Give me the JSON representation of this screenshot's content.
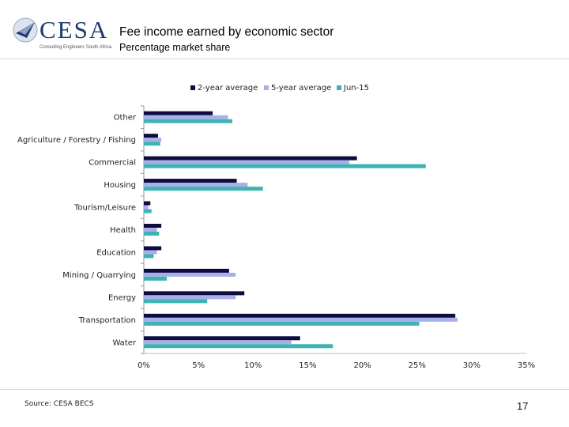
{
  "header": {
    "logo_text": "CESA",
    "logo_tagline": "Consulting Engineers South Africa",
    "title": "Fee income earned by economic sector",
    "subtitle": "Percentage market share"
  },
  "footer": {
    "source": "Source: CESA BECS",
    "page_number": "17"
  },
  "colors": {
    "series_1": "#0c0c3e",
    "series_2": "#a8b0ea",
    "series_3": "#3fb3b3"
  },
  "chart_data": {
    "type": "bar",
    "orientation": "horizontal",
    "title": "Fee income earned by economic sector",
    "subtitle": "Percentage market share",
    "categories": [
      "Other",
      "Agriculture / Forestry / Fishing",
      "Commercial",
      "Housing",
      "Tourism/Leisure",
      "Health",
      "Education",
      "Mining / Quarrying",
      "Energy",
      "Transportation",
      "Water"
    ],
    "series": [
      {
        "name": "2-year average",
        "values": [
          6.3,
          1.3,
          19.5,
          8.5,
          0.6,
          1.6,
          1.6,
          7.8,
          9.2,
          28.5,
          14.3
        ]
      },
      {
        "name": "5-year average",
        "values": [
          7.7,
          1.6,
          18.8,
          9.5,
          0.4,
          1.2,
          1.2,
          8.4,
          8.4,
          28.7,
          13.5
        ]
      },
      {
        "name": "Jun-15",
        "values": [
          8.1,
          1.5,
          25.8,
          10.9,
          0.7,
          1.4,
          0.9,
          2.1,
          5.8,
          25.2,
          17.3
        ]
      }
    ],
    "xlim": [
      0,
      35
    ],
    "x_ticks": [
      "0%",
      "5%",
      "10%",
      "15%",
      "20%",
      "25%",
      "30%",
      "35%"
    ],
    "x_tick_values": [
      0,
      5,
      10,
      15,
      20,
      25,
      30,
      35
    ],
    "legend_position": "top"
  }
}
